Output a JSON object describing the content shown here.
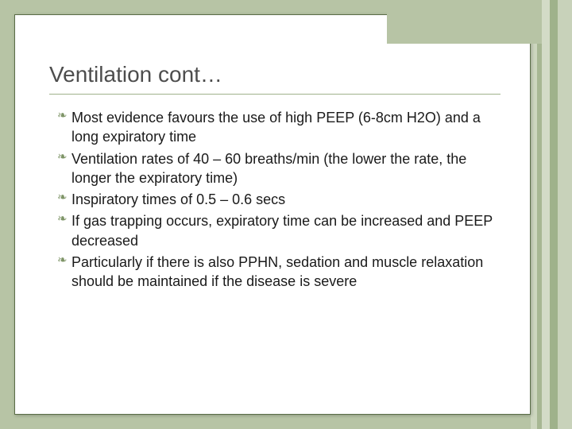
{
  "background_color": "#b7c4a5",
  "slide": {
    "bg": "#ffffff",
    "border_color": "#5a6d47"
  },
  "accent_box_color": "#b7c4a5",
  "rule_color": "#9fb28b",
  "stripes": [
    {
      "w": 8,
      "c": "#cdd6bf"
    },
    {
      "w": 6,
      "c": "#a7b793"
    },
    {
      "w": 10,
      "c": "#d3dbc7"
    },
    {
      "w": 10,
      "c": "#9fb28b"
    },
    {
      "w": 18,
      "c": "#c8d2ba"
    }
  ],
  "title": "Ventilation cont…",
  "bullet_marker": "❧",
  "marker_color": "#7f9568",
  "bullets": [
    {
      "first": "Most",
      "rest": " evidence favours the use of high PEEP (6-8cm H2O) and a long expiratory time"
    },
    {
      "first": "Ventilation",
      "rest": " rates of 40 – 60 breaths/min (the lower the rate, the longer the expiratory time)"
    },
    {
      "first": "Inspiratory",
      "rest": " times of 0.5 – 0.6 secs"
    },
    {
      "first": "If",
      "rest": " gas trapping occurs, expiratory time can be increased and PEEP decreased"
    },
    {
      "first": "Particularly",
      "rest": " if there is also PPHN, sedation and muscle relaxation should be maintained if the disease is severe"
    }
  ]
}
